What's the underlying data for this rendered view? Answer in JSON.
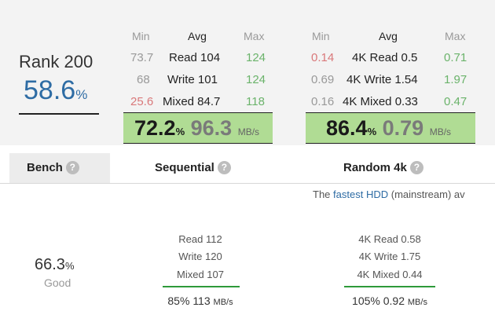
{
  "rank": {
    "label": "Rank 200",
    "score": "58.6",
    "score_unit": "%"
  },
  "sequential_stats": {
    "headers": {
      "min": "Min",
      "avg": "Avg",
      "max": "Max"
    },
    "rows": [
      {
        "min": "73.7",
        "avg": "Read 104",
        "max": "124"
      },
      {
        "min": "68",
        "avg": "Write 101",
        "max": "124"
      },
      {
        "min": "25.6",
        "avg": "Mixed 84.7",
        "max": "118"
      }
    ],
    "summary": {
      "pct": "72.2",
      "pct_unit": "%",
      "speed": "96.3",
      "speed_unit": "MB/s"
    }
  },
  "random_stats": {
    "headers": {
      "min": "Min",
      "avg": "Avg",
      "max": "Max"
    },
    "rows": [
      {
        "min": "0.14",
        "avg": "4K Read 0.5",
        "max": "0.71"
      },
      {
        "min": "0.69",
        "avg": "4K Write 1.54",
        "max": "1.97"
      },
      {
        "min": "0.16",
        "avg": "4K Mixed 0.33",
        "max": "0.47"
      }
    ],
    "summary": {
      "pct": "86.4",
      "pct_unit": "%",
      "speed": "0.79",
      "speed_unit": "MB/s"
    }
  },
  "tabs": {
    "bench": "Bench",
    "sequential": "Sequential",
    "random": "Random 4k",
    "help_glyph": "?"
  },
  "note": {
    "prefix": "The",
    "link": "fastest HDD",
    "suffix": "(mainstream) av"
  },
  "bench_result": {
    "score": "66.3",
    "score_unit": "%",
    "label": "Good"
  },
  "sequential_result": {
    "lines": [
      "Read 112",
      "Write 120",
      "Mixed 107"
    ],
    "pct": "85%",
    "speed": "113",
    "unit": "MB/s"
  },
  "random_result": {
    "lines": [
      "4K Read 0.58",
      "4K Write 1.75",
      "4K Mixed 0.44"
    ],
    "pct": "105%",
    "speed": "0.92",
    "unit": "MB/s"
  },
  "colors": {
    "score_blue": "#2e6ca4",
    "box_green": "#b0dc94",
    "max_green": "#6bb36b",
    "min_red": "#d9787a",
    "bar_green": "#2e9a3a"
  }
}
